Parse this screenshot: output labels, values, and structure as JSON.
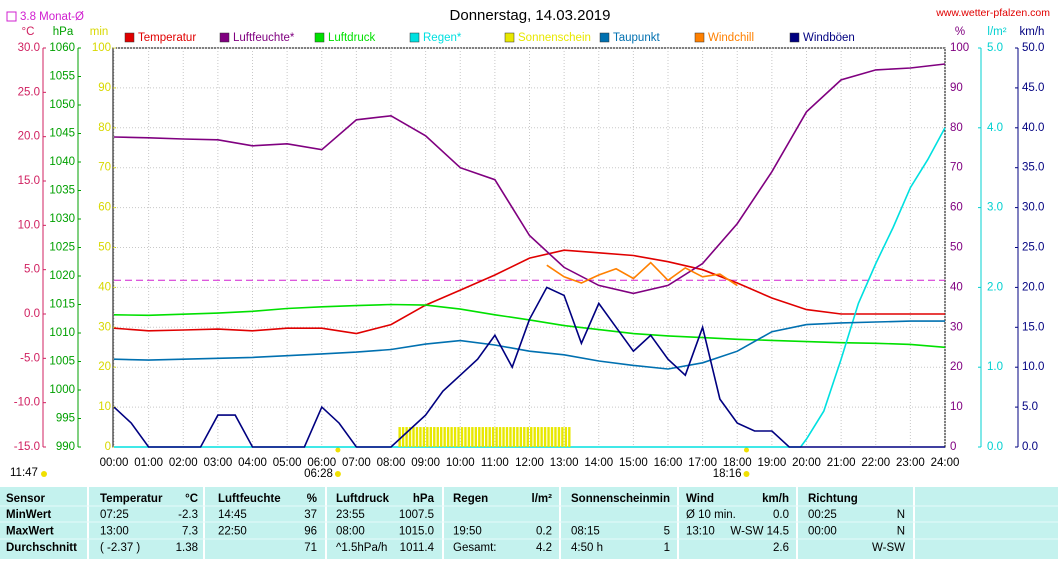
{
  "chart_data": {
    "type": "line",
    "title": "Donnerstag, 14.03.2019",
    "source": "www.wetter-pfalzen.com",
    "reference": {
      "value": 3.8,
      "label": "3.8 Monat-Ø",
      "axis": "°C",
      "color": "#d020d0"
    },
    "day_length": "11:47",
    "sunrise": {
      "value": 6.4667,
      "label": "06:28"
    },
    "sunset": {
      "value": 18.2667,
      "label": "18:16"
    },
    "xlim": [
      0,
      24
    ],
    "xticks": [
      {
        "value": 0,
        "label": "00:00"
      },
      {
        "value": 1,
        "label": "01:00"
      },
      {
        "value": 2,
        "label": "02:00"
      },
      {
        "value": 3,
        "label": "03:00"
      },
      {
        "value": 4,
        "label": "04:00"
      },
      {
        "value": 5,
        "label": "05:00"
      },
      {
        "value": 6,
        "label": "06:00"
      },
      {
        "value": 7,
        "label": "07:00"
      },
      {
        "value": 8,
        "label": "08:00"
      },
      {
        "value": 9,
        "label": "09:00"
      },
      {
        "value": 10,
        "label": "10:00"
      },
      {
        "value": 11,
        "label": "11:00"
      },
      {
        "value": 12,
        "label": "12:00"
      },
      {
        "value": 13,
        "label": "13:00"
      },
      {
        "value": 14,
        "label": "14:00"
      },
      {
        "value": 15,
        "label": "15:00"
      },
      {
        "value": 16,
        "label": "16:00"
      },
      {
        "value": 17,
        "label": "17:00"
      },
      {
        "value": 18,
        "label": "18:00"
      },
      {
        "value": 19,
        "label": "19:00"
      },
      {
        "value": 20,
        "label": "20:00"
      },
      {
        "value": 21,
        "label": "21:00"
      },
      {
        "value": 22,
        "label": "22:00"
      },
      {
        "value": 23,
        "label": "23:00"
      },
      {
        "value": 24,
        "label": "24:00"
      }
    ],
    "axes": [
      {
        "unit": "°C",
        "side": "left",
        "color": "#d02060",
        "lim": [
          -15,
          30
        ],
        "ticks": [
          {
            "value": -15,
            "label": "-15.0"
          },
          {
            "value": -10,
            "label": "-10.0"
          },
          {
            "value": -5,
            "label": "-5.0"
          },
          {
            "value": 0,
            "label": "0.0"
          },
          {
            "value": 5,
            "label": "5.0"
          },
          {
            "value": 10,
            "label": "10.0"
          },
          {
            "value": 15,
            "label": "15.0"
          },
          {
            "value": 20,
            "label": "20.0"
          },
          {
            "value": 25,
            "label": "25.0"
          },
          {
            "value": 30,
            "label": "30.0"
          }
        ]
      },
      {
        "unit": "hPa",
        "side": "left",
        "color": "#00a000",
        "lim": [
          990,
          1060
        ],
        "ticks": [
          990,
          995,
          1000,
          1005,
          1010,
          1015,
          1020,
          1025,
          1030,
          1035,
          1040,
          1045,
          1050,
          1055,
          1060
        ]
      },
      {
        "unit": "min",
        "side": "left",
        "color": "#d8d800",
        "lim": [
          0,
          100
        ],
        "ticks": [
          0,
          10,
          20,
          30,
          40,
          50,
          60,
          70,
          80,
          90,
          100
        ]
      },
      {
        "unit": "%",
        "side": "right",
        "color": "#800080",
        "lim": [
          0,
          100
        ],
        "grid": true,
        "ticks": [
          0,
          10,
          20,
          30,
          40,
          50,
          60,
          70,
          80,
          90,
          100
        ]
      },
      {
        "unit": "l/m²",
        "side": "right",
        "color": "#00d0d0",
        "lim": [
          0,
          5
        ],
        "ticks": [
          {
            "value": 0,
            "label": "0.0"
          },
          {
            "value": 1,
            "label": "1.0"
          },
          {
            "value": 2,
            "label": "2.0"
          },
          {
            "value": 3,
            "label": "3.0"
          },
          {
            "value": 4,
            "label": "4.0"
          },
          {
            "value": 5,
            "label": "5.0"
          }
        ]
      },
      {
        "unit": "km/h",
        "side": "right",
        "color": "#000080",
        "lim": [
          0,
          50
        ],
        "ticks": [
          {
            "value": 0,
            "label": "0.0"
          },
          {
            "value": 5,
            "label": "5.0"
          },
          {
            "value": 10,
            "label": "10.0"
          },
          {
            "value": 15,
            "label": "15.0"
          },
          {
            "value": 20,
            "label": "20.0"
          },
          {
            "value": 25,
            "label": "25.0"
          },
          {
            "value": 30,
            "label": "30.0"
          },
          {
            "value": 35,
            "label": "35.0"
          },
          {
            "value": 40,
            "label": "40.0"
          },
          {
            "value": 45,
            "label": "45.0"
          },
          {
            "value": 50,
            "label": "50.0"
          }
        ]
      }
    ],
    "series": [
      {
        "name": "Temperatur",
        "color": "#e00000",
        "axis": "°C",
        "x": [
          0,
          1,
          2,
          3,
          4,
          5,
          6,
          7,
          8,
          9,
          10,
          11,
          12,
          13,
          14,
          15,
          16,
          17,
          18,
          19,
          20,
          21,
          22,
          23,
          24
        ],
        "values": [
          -1.6,
          -1.9,
          -1.8,
          -1.7,
          -1.9,
          -1.6,
          -1.6,
          -2.2,
          -1.2,
          1.0,
          2.7,
          4.4,
          6.3,
          7.2,
          6.9,
          6.6,
          5.9,
          5.0,
          3.5,
          1.8,
          0.5,
          0.0,
          0.0,
          0.0,
          0.0
        ]
      },
      {
        "name": "Luftfeuchte*",
        "color": "#800080",
        "axis": "%",
        "x": [
          0,
          1,
          2,
          3,
          4,
          5,
          6,
          7,
          8,
          9,
          10,
          11,
          12,
          13,
          14,
          15,
          16,
          17,
          18,
          19,
          20,
          21,
          22,
          23,
          24
        ],
        "values": [
          77.7,
          77.5,
          77.2,
          77,
          75.5,
          76,
          74.5,
          82,
          83,
          78,
          70,
          67,
          53,
          45,
          40.5,
          38.5,
          40.5,
          46,
          56,
          69,
          84,
          92,
          94.5,
          95,
          96
        ]
      },
      {
        "name": "Luftdruck",
        "color": "#00e000",
        "axis": "hPa",
        "x": [
          0,
          1,
          2,
          3,
          4,
          5,
          6,
          7,
          8,
          9,
          10,
          11,
          12,
          13,
          14,
          15,
          16,
          17,
          18,
          19,
          20,
          21,
          22,
          23,
          24
        ],
        "values": [
          1013.2,
          1013.1,
          1013.3,
          1013.5,
          1013.8,
          1014.3,
          1014.6,
          1014.8,
          1015.0,
          1014.9,
          1014.2,
          1013.2,
          1012.3,
          1011.3,
          1010.6,
          1009.9,
          1009.5,
          1009.2,
          1008.9,
          1008.7,
          1008.5,
          1008.3,
          1008.2,
          1008.0,
          1007.5
        ]
      },
      {
        "name": "Regen*",
        "color": "#00e0e0",
        "axis": "l/m²",
        "x": [
          0,
          19.83,
          20,
          20.5,
          21,
          21.5,
          22,
          22.5,
          23,
          23.5,
          24
        ],
        "values": [
          0,
          0,
          0.1,
          0.45,
          1.1,
          1.8,
          2.3,
          2.75,
          3.25,
          3.6,
          4.0
        ]
      },
      {
        "name": "Sonnenschein",
        "color": "#e8e800",
        "axis": "min",
        "type": "bar",
        "x": [
          8.25,
          8.35,
          8.45,
          8.55,
          8.65,
          8.75,
          8.85,
          8.95,
          9.05,
          9.15,
          9.25,
          9.35,
          9.45,
          9.55,
          9.65,
          9.75,
          9.85,
          9.95,
          10.05,
          10.15,
          10.25,
          10.35,
          10.45,
          10.55,
          10.65,
          10.75,
          10.85,
          10.95,
          11.05,
          11.15,
          11.25,
          11.35,
          11.45,
          11.55,
          11.65,
          11.75,
          11.85,
          11.95,
          12.05,
          12.15,
          12.25,
          12.35,
          12.45,
          12.55,
          12.65,
          12.75,
          12.85,
          12.95,
          13.05,
          13.15
        ],
        "values": [
          5,
          5,
          5,
          5,
          5,
          5,
          5,
          5,
          5,
          5,
          5,
          5,
          5,
          5,
          5,
          5,
          5,
          5,
          5,
          5,
          5,
          5,
          5,
          5,
          5,
          5,
          5,
          5,
          5,
          5,
          5,
          5,
          5,
          5,
          5,
          5,
          5,
          5,
          5,
          5,
          5,
          5,
          5,
          5,
          5,
          5,
          5,
          5,
          5,
          5
        ]
      },
      {
        "name": "Taupunkt",
        "color": "#0070b0",
        "axis": "°C",
        "x": [
          0,
          1,
          2,
          3,
          4,
          5,
          6,
          7,
          8,
          9,
          10,
          11,
          12,
          13,
          14,
          15,
          16,
          17,
          18,
          19,
          20,
          21,
          22,
          23,
          24
        ],
        "values": [
          -5.1,
          -5.2,
          -5.1,
          -5.0,
          -4.9,
          -4.7,
          -4.5,
          -4.3,
          -4.0,
          -3.4,
          -3.0,
          -3.5,
          -4.2,
          -4.6,
          -5.3,
          -5.8,
          -6.2,
          -5.5,
          -4.2,
          -2.0,
          -1.2,
          -1.0,
          -0.9,
          -0.8,
          -0.8
        ]
      },
      {
        "name": "Windchill",
        "color": "#ff8000",
        "axis": "°C",
        "x": [
          12.5,
          13,
          13.5,
          14,
          14.5,
          15,
          15.5,
          16,
          16.5,
          17,
          17.5,
          18
        ],
        "values": [
          5.5,
          4.2,
          3.5,
          4.4,
          5.1,
          4.0,
          5.8,
          3.8,
          5.2,
          4.2,
          4.5,
          3.2
        ]
      },
      {
        "name": "Windböen",
        "color": "#000080",
        "axis": "km/h",
        "x": [
          0,
          0.5,
          1,
          1.5,
          2,
          2.5,
          3,
          3.5,
          4,
          4.5,
          5,
          5.5,
          6,
          6.5,
          7,
          7.5,
          8,
          8.5,
          9,
          9.5,
          10,
          10.5,
          11,
          11.5,
          12,
          12.5,
          13,
          13.5,
          14,
          14.5,
          15,
          15.5,
          16,
          16.5,
          17,
          17.5,
          18,
          18.5,
          19,
          19.5,
          20,
          20.5,
          21,
          21.5,
          22,
          22.5,
          23,
          23.5,
          24
        ],
        "values": [
          5,
          3,
          0,
          0,
          0,
          0,
          4,
          4,
          0,
          0,
          0,
          0,
          5,
          3,
          0,
          0,
          0,
          2,
          4,
          7,
          9,
          11,
          14,
          10,
          16,
          20,
          19,
          13,
          18,
          15,
          12,
          14,
          11,
          9,
          15,
          6,
          3,
          2,
          2,
          0,
          0,
          0,
          0,
          0,
          0,
          0,
          0,
          0,
          0
        ]
      }
    ]
  },
  "table": {
    "header": [
      "Sensor",
      "Temperatur",
      "°C",
      "Luftfeuchte",
      "%",
      "Luftdruck",
      "hPa",
      "Regen",
      "l/m²",
      "Sonnenschein",
      "min",
      "Wind",
      "km/h",
      "Richtung",
      null
    ],
    "rows": [
      [
        "MinWert",
        "07:25",
        "-2.3",
        "14:45",
        "37",
        "23:55",
        "1007.5",
        null,
        null,
        null,
        null,
        "Ø 10 min.",
        "0.0",
        "00:25",
        "N"
      ],
      [
        "MaxWert",
        "13:00",
        "7.3",
        "22:50",
        "96",
        "08:00",
        "1015.0",
        "19:50",
        "0.2",
        "08:15",
        "5",
        "13:10",
        "W-SW 14.5",
        "00:00",
        "N"
      ],
      [
        "Durchschnitt",
        "( -2.37 )",
        "1.38",
        null,
        "71",
        "^1.5hPa/h",
        "1011.4",
        "Gesamt:",
        "4.2",
        "4:50 h",
        "1",
        null,
        "2.6",
        null,
        "W-SW"
      ]
    ]
  }
}
